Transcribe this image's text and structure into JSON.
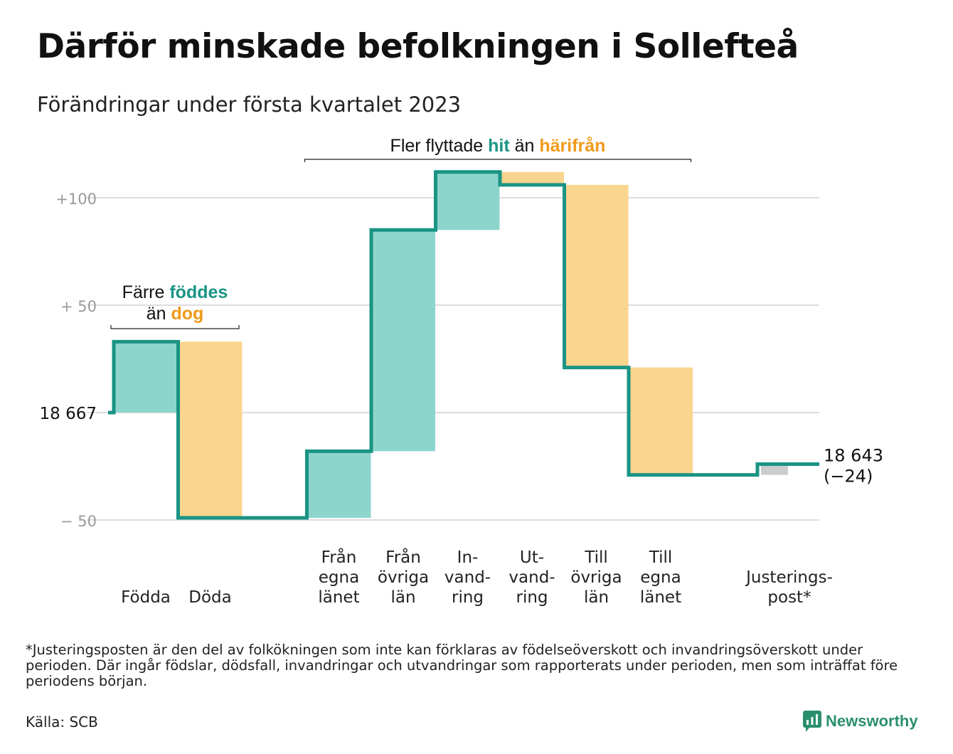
{
  "title": "Därför minskade befolkningen i Sollefteå",
  "subtitle": "Förändringar under första kvartalet 2023",
  "colors": {
    "inflow": "#8dd5cc",
    "outflow": "#fad58d",
    "adjustment": "#cccccc",
    "line": "#1a9484",
    "grid": "#dddddd",
    "tick": "#999999",
    "accent_green": "#1a9484",
    "accent_orange": "#f09a1a"
  },
  "annotations": {
    "births": {
      "line1_plain": "Färre ",
      "line1_accent": "föddes",
      "line2_plain": "än ",
      "line2_accent": "dog"
    },
    "migration": {
      "plain1": "Fler flyttade ",
      "accent1": "hit",
      "plain2": " än ",
      "accent2": "härifrån"
    }
  },
  "chart_data": {
    "type": "waterfall",
    "start_label": "18 667",
    "end_label": "18 643",
    "end_change_label": "(−24)",
    "y_tick_labels": [
      "+100",
      "+ 50",
      "18 667",
      "− 50"
    ],
    "y_tick_values": [
      100,
      50,
      0,
      -50
    ],
    "ylim": [
      -60,
      115
    ],
    "grid": true,
    "steps": [
      {
        "label": [
          "Födda"
        ],
        "kind": "inflow",
        "change": 33
      },
      {
        "label": [
          "Döda"
        ],
        "kind": "outflow",
        "change": -82
      },
      {
        "label": [
          ""
        ],
        "kind": "none",
        "change": 0
      },
      {
        "label": [
          "Från",
          "egna",
          "länet"
        ],
        "kind": "inflow",
        "change": 31
      },
      {
        "label": [
          "Från",
          "övriga",
          "län"
        ],
        "kind": "inflow",
        "change": 103
      },
      {
        "label": [
          "In-",
          "vand-",
          "ring"
        ],
        "kind": "inflow",
        "change": 27
      },
      {
        "label": [
          "Ut-",
          "vand-",
          "ring"
        ],
        "kind": "outflow",
        "change": -6
      },
      {
        "label": [
          "Till",
          "övriga",
          "län"
        ],
        "kind": "outflow",
        "change": -85
      },
      {
        "label": [
          "Till",
          "egna",
          "länet"
        ],
        "kind": "outflow",
        "change": -50
      },
      {
        "label": [
          ""
        ],
        "kind": "none",
        "change": 0
      },
      {
        "label": [
          "Justerings-",
          "post*"
        ],
        "kind": "adjustment",
        "change": 5
      }
    ]
  },
  "footnote": "*Justeringsposten är den del av folkökningen som inte kan förklaras av födelseöverskott och invandringsöverskott under perioden. Där ingår födslar, dödsfall, invandringar och utvandringar som rapporterats under perioden, men som inträffat före periodens början.",
  "source": "Källa: SCB",
  "logo": {
    "icon": "bar-chart-icon",
    "text": "Newsworthy"
  }
}
